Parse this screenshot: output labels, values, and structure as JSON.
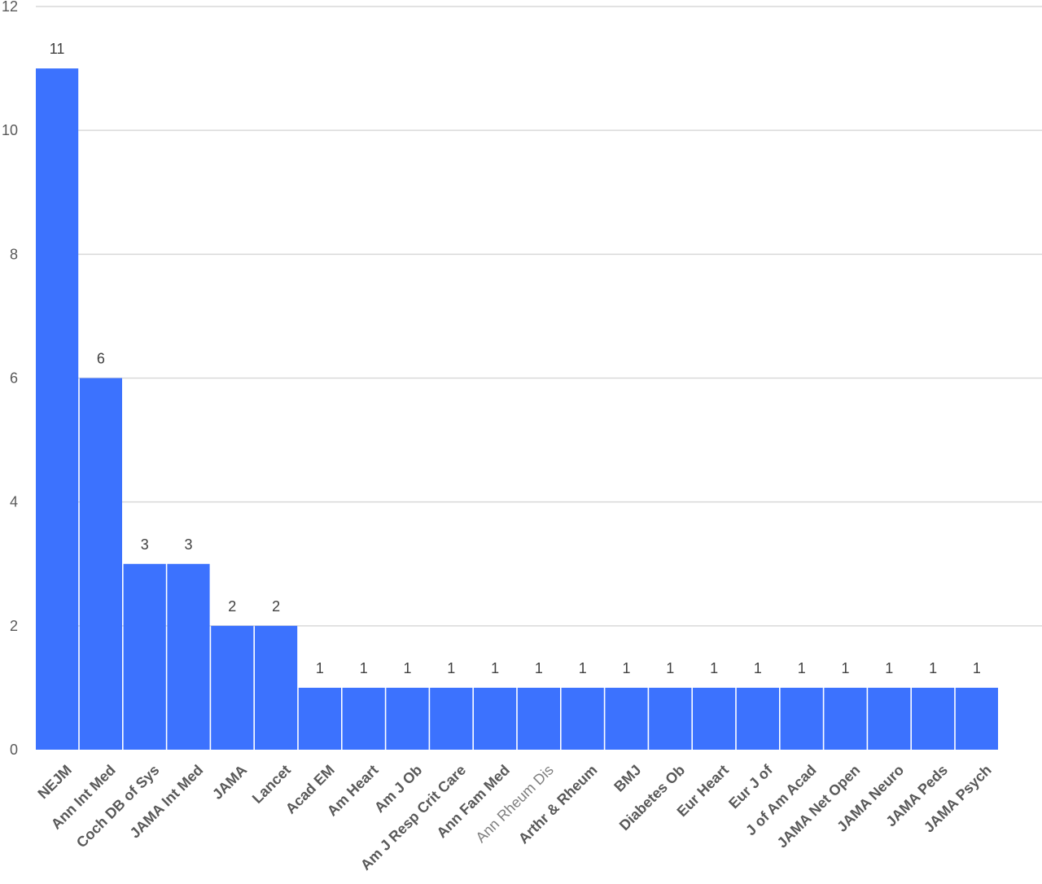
{
  "chart_data": {
    "type": "bar",
    "categories": [
      "NEJM",
      "Ann Int Med",
      "Coch DB of Sys",
      "JAMA Int Med",
      "JAMA",
      "Lancet",
      "Acad EM",
      "Am Heart",
      "Am J Ob",
      "Am J Resp Crit Care",
      "Ann Fam Med",
      "Ann Rheum Dis",
      "Arthr & Rheum",
      "BMJ",
      "Diabetes Ob",
      "Eur Heart",
      "Eur J of",
      "J of Am Acad",
      "JAMA Net Open",
      "JAMA Neuro",
      "JAMA Peds",
      "JAMA Psych"
    ],
    "values": [
      11,
      6,
      3,
      3,
      2,
      2,
      1,
      1,
      1,
      1,
      1,
      1,
      1,
      1,
      1,
      1,
      1,
      1,
      1,
      1,
      1,
      1
    ],
    "data_labels": [
      "11",
      "6",
      "3",
      "3",
      "2",
      "2",
      "1",
      "1",
      "1",
      "1",
      "1",
      "1",
      "1",
      "1",
      "1",
      "1",
      "1",
      "1",
      "1",
      "1",
      "1",
      "1"
    ],
    "yticks": [
      "0",
      "2",
      "4",
      "6",
      "8",
      "10",
      "12"
    ],
    "ylim": [
      0,
      12
    ],
    "title": "",
    "xlabel": "",
    "ylabel": "",
    "grid": true,
    "legend": "none",
    "bar_color": "#3c72fe",
    "light_label_categories": [
      "Ann Rheum Dis"
    ]
  }
}
